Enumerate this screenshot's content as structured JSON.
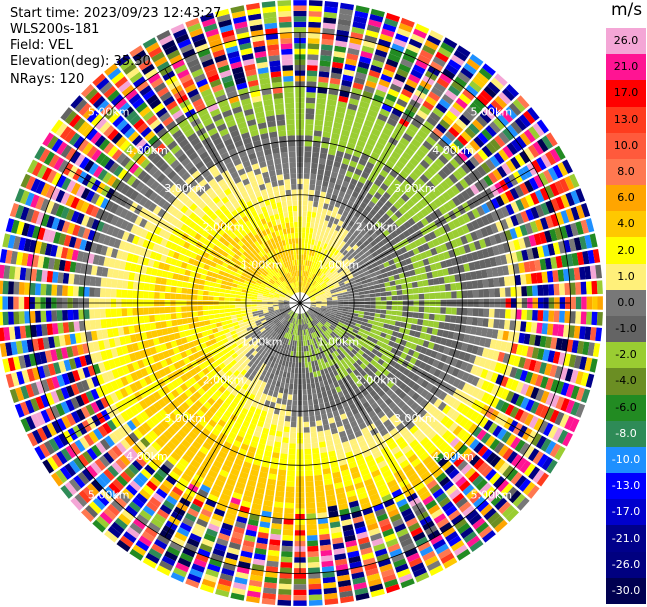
{
  "header": {
    "start_time": "Start time: 2023/09/23 12:43:27",
    "instrument": "WLS200s-181",
    "field": "Field: VEL",
    "elevation": "Elevation(deg): 35.30",
    "nrays": "NRays: 120"
  },
  "colorbar": {
    "unit": "m/s",
    "entries": [
      {
        "label": "26.0",
        "color": "#f4a6d6"
      },
      {
        "label": "21.0",
        "color": "#ff1493"
      },
      {
        "label": "17.0",
        "color": "#ff0000"
      },
      {
        "label": "13.0",
        "color": "#ff3c1e"
      },
      {
        "label": "10.0",
        "color": "#ff5a3c"
      },
      {
        "label": "8.0",
        "color": "#ff7850"
      },
      {
        "label": "6.0",
        "color": "#ffa500"
      },
      {
        "label": "4.0",
        "color": "#ffc800"
      },
      {
        "label": "2.0",
        "color": "#ffff00"
      },
      {
        "label": "1.0",
        "color": "#fff07a"
      },
      {
        "label": "0.0",
        "color": "#787878"
      },
      {
        "label": "-1.0",
        "color": "#646464"
      },
      {
        "label": "-2.0",
        "color": "#9acd32"
      },
      {
        "label": "-4.0",
        "color": "#6b8e23"
      },
      {
        "label": "-6.0",
        "color": "#228b22"
      },
      {
        "label": "-8.0",
        "color": "#2e8b57"
      },
      {
        "label": "-10.0",
        "color": "#1e90ff"
      },
      {
        "label": "-13.0",
        "color": "#0000ff"
      },
      {
        "label": "-17.0",
        "color": "#0000cd"
      },
      {
        "label": "-21.0",
        "color": "#00008b"
      },
      {
        "label": "-26.0",
        "color": "#000080"
      },
      {
        "label": "-30.0",
        "color": "#000050"
      }
    ]
  },
  "chart_data": {
    "type": "heatmap",
    "projection": "polar PPI",
    "title": "",
    "field": "VEL",
    "units": "m/s",
    "nrays": 120,
    "elevation_deg": 35.3,
    "range_rings_km": [
      1.0,
      2.0,
      3.0,
      4.0,
      5.0
    ],
    "range_ring_labels": [
      "1.00km",
      "2.00km",
      "3.00km",
      "4.00km",
      "5.00km"
    ],
    "max_range_km": 5.6,
    "noise_beyond_km": 4.0,
    "azimuth_grid_deg": [
      0,
      30,
      60,
      90,
      120,
      150,
      180,
      210,
      240,
      270,
      300,
      330
    ],
    "colorbar_range": [
      -30.0,
      26.0
    ],
    "pattern_description": "Near-field |v| < 4 m/s, positive (yellow) toward north, negative (green) toward south; random colors (noise) beyond ~4 km"
  }
}
